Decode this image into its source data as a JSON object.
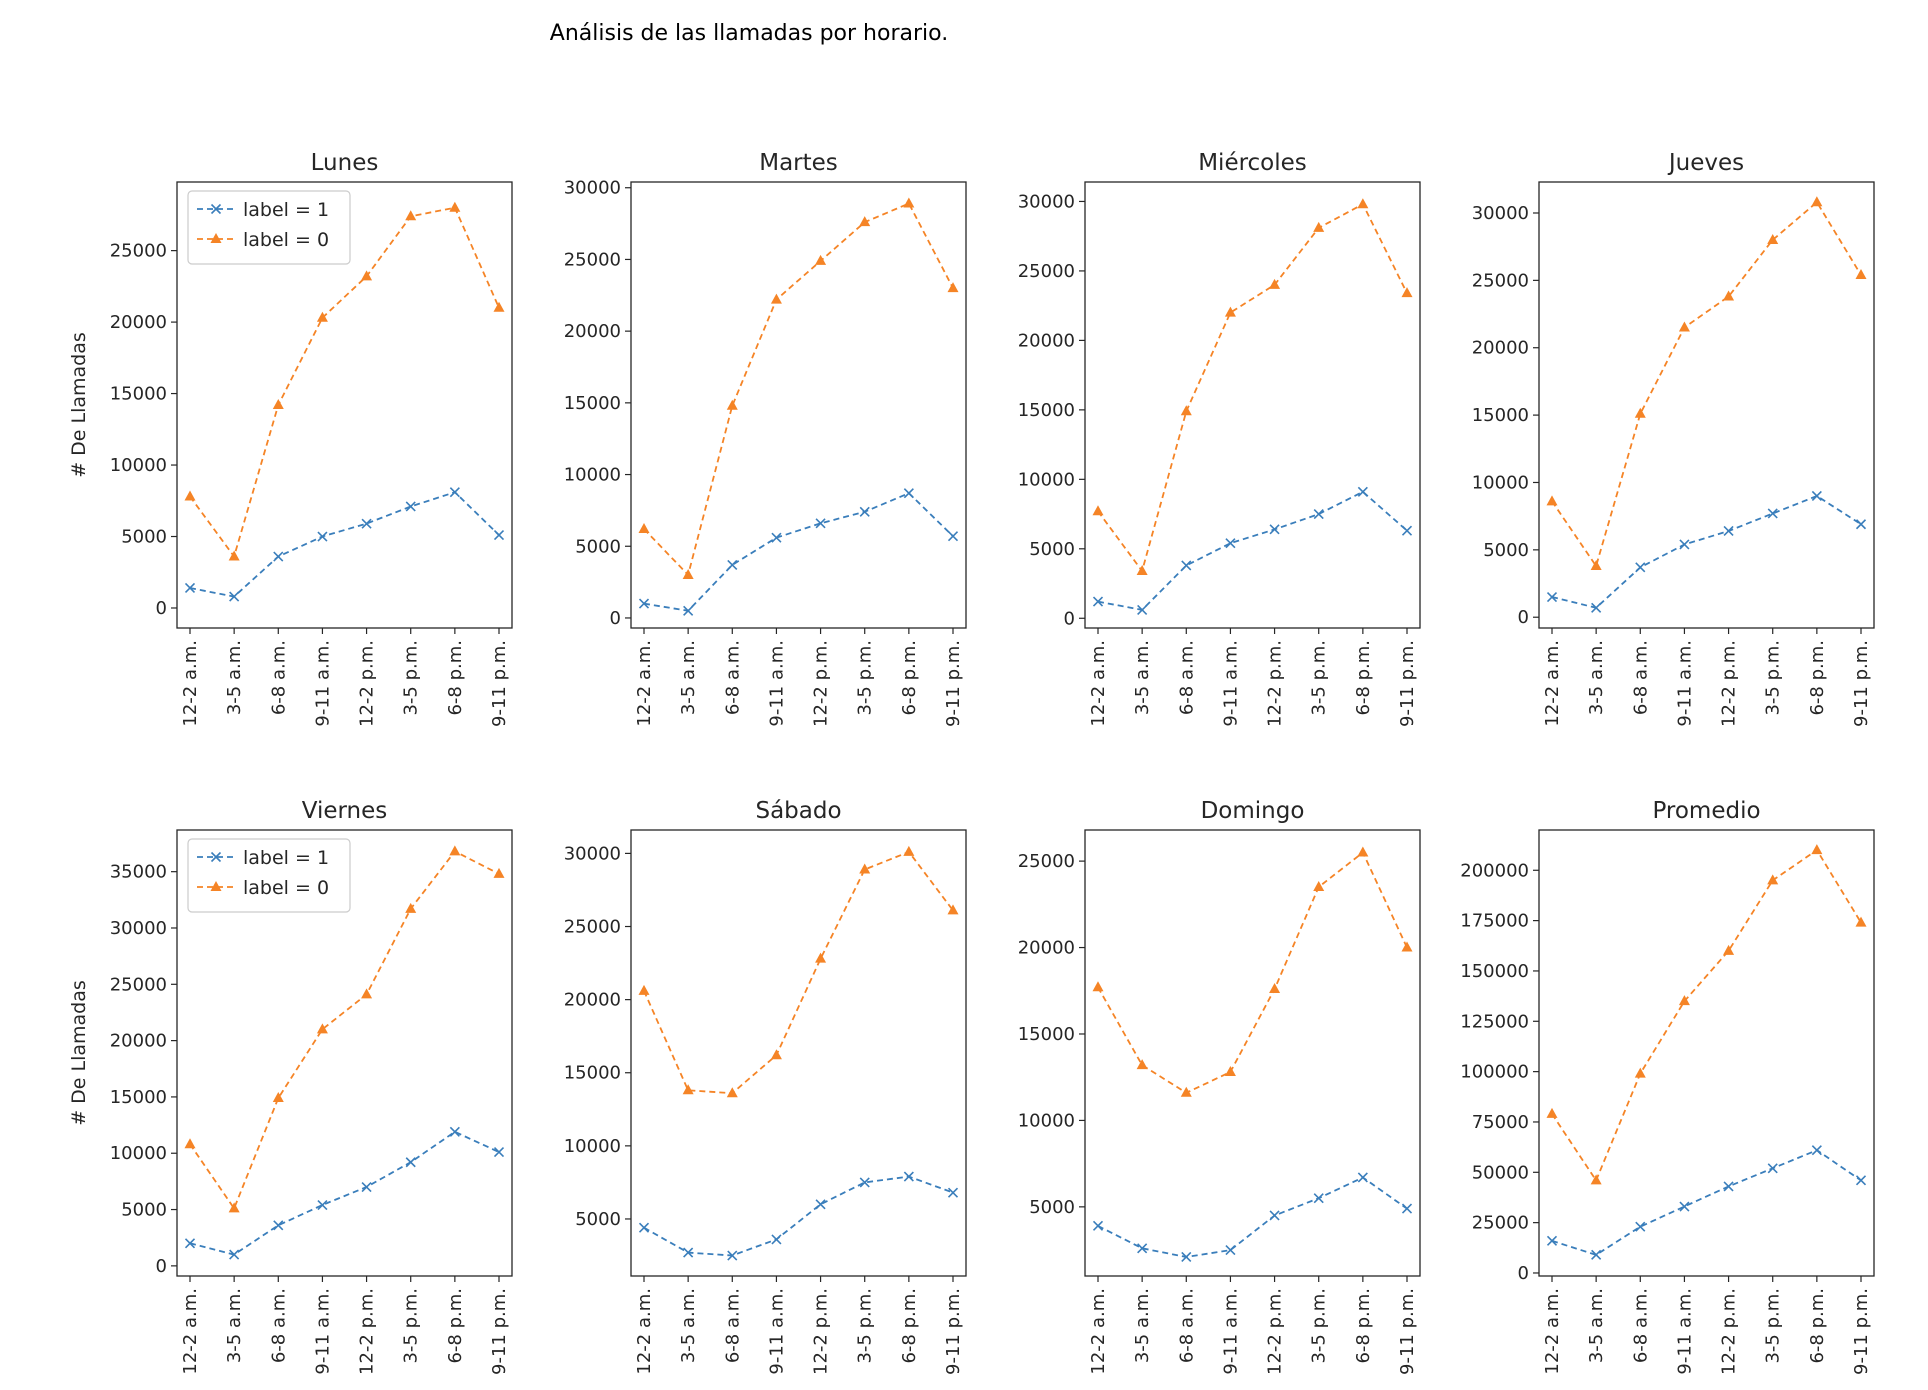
{
  "figure": {
    "suptitle": "Análisis de las llamadas por horario.",
    "ylabel": "# De Llamadas"
  },
  "colors": {
    "label1": "#3a7ebb",
    "label0": "#f58426",
    "axes": "#262626"
  },
  "chart_data": [
    {
      "type": "line",
      "title": "Lunes",
      "xlabel": "",
      "ylabel": "# De Llamadas",
      "categories": [
        "12-2 a.m.",
        "3-5 a.m.",
        "6-8 a.m.",
        "9-11 a.m.",
        "12-2 p.m.",
        "3-5 p.m.",
        "6-8 p.m.",
        "9-11 p.m."
      ],
      "ylim": [
        -1400,
        29800
      ],
      "yticks": [
        0,
        5000,
        10000,
        15000,
        20000,
        25000
      ],
      "legend": "upper-left",
      "grid": false,
      "series": [
        {
          "name": "label = 1",
          "marker": "x",
          "values": [
            1400,
            800,
            3600,
            5000,
            5900,
            7100,
            8100,
            5100
          ]
        },
        {
          "name": "label = 0",
          "marker": "triangle",
          "values": [
            7800,
            3600,
            14200,
            20300,
            23200,
            27400,
            28000,
            21000
          ]
        }
      ]
    },
    {
      "type": "line",
      "title": "Martes",
      "xlabel": "",
      "ylabel": "",
      "categories": [
        "12-2 a.m.",
        "3-5 a.m.",
        "6-8 a.m.",
        "9-11 a.m.",
        "12-2 p.m.",
        "3-5 p.m.",
        "6-8 p.m.",
        "9-11 p.m."
      ],
      "ylim": [
        -700,
        30400
      ],
      "yticks": [
        0,
        5000,
        10000,
        15000,
        20000,
        25000,
        30000
      ],
      "legend": "none",
      "grid": false,
      "series": [
        {
          "name": "label = 1",
          "marker": "x",
          "values": [
            1000,
            500,
            3700,
            5600,
            6600,
            7400,
            8700,
            5700
          ]
        },
        {
          "name": "label = 0",
          "marker": "triangle",
          "values": [
            6200,
            3000,
            14800,
            22200,
            24900,
            27600,
            28900,
            23000
          ]
        }
      ]
    },
    {
      "type": "line",
      "title": "Miércoles",
      "xlabel": "",
      "ylabel": "",
      "categories": [
        "12-2 a.m.",
        "3-5 a.m.",
        "6-8 a.m.",
        "9-11 a.m.",
        "12-2 p.m.",
        "3-5 p.m.",
        "6-8 p.m.",
        "9-11 p.m."
      ],
      "ylim": [
        -700,
        31400
      ],
      "yticks": [
        0,
        5000,
        10000,
        15000,
        20000,
        25000,
        30000
      ],
      "legend": "none",
      "grid": false,
      "series": [
        {
          "name": "label = 1",
          "marker": "x",
          "values": [
            1200,
            600,
            3800,
            5400,
            6400,
            7500,
            9100,
            6300
          ]
        },
        {
          "name": "label = 0",
          "marker": "triangle",
          "values": [
            7700,
            3400,
            14900,
            22000,
            24000,
            28100,
            29800,
            23400
          ]
        }
      ]
    },
    {
      "type": "line",
      "title": "Jueves",
      "xlabel": "",
      "ylabel": "",
      "categories": [
        "12-2 a.m.",
        "3-5 a.m.",
        "6-8 a.m.",
        "9-11 a.m.",
        "12-2 p.m.",
        "3-5 p.m.",
        "6-8 p.m.",
        "9-11 p.m."
      ],
      "ylim": [
        -800,
        32300
      ],
      "yticks": [
        0,
        5000,
        10000,
        15000,
        20000,
        25000,
        30000
      ],
      "legend": "none",
      "grid": false,
      "series": [
        {
          "name": "label = 1",
          "marker": "x",
          "values": [
            1500,
            700,
            3700,
            5400,
            6400,
            7700,
            9000,
            6900
          ]
        },
        {
          "name": "label = 0",
          "marker": "triangle",
          "values": [
            8600,
            3800,
            15100,
            21500,
            23800,
            28000,
            30800,
            25400
          ]
        }
      ]
    },
    {
      "type": "line",
      "title": "Viernes",
      "xlabel": "",
      "ylabel": "# De Llamadas",
      "categories": [
        "12-2 a.m.",
        "3-5 a.m.",
        "6-8 a.m.",
        "9-11 a.m.",
        "12-2 p.m.",
        "3-5 p.m.",
        "6-8 p.m.",
        "9-11 p.m."
      ],
      "ylim": [
        -900,
        38700
      ],
      "yticks": [
        0,
        5000,
        10000,
        15000,
        20000,
        25000,
        30000,
        35000
      ],
      "legend": "upper-left",
      "grid": false,
      "series": [
        {
          "name": "label = 1",
          "marker": "x",
          "values": [
            2000,
            1000,
            3600,
            5400,
            7000,
            9200,
            11900,
            10100
          ]
        },
        {
          "name": "label = 0",
          "marker": "triangle",
          "values": [
            10800,
            5100,
            14900,
            21000,
            24100,
            31700,
            36800,
            34800
          ]
        }
      ]
    },
    {
      "type": "line",
      "title": "Sábado",
      "xlabel": "",
      "ylabel": "",
      "categories": [
        "12-2 a.m.",
        "3-5 a.m.",
        "6-8 a.m.",
        "9-11 a.m.",
        "12-2 p.m.",
        "3-5 p.m.",
        "6-8 p.m.",
        "9-11 p.m."
      ],
      "ylim": [
        1100,
        31600
      ],
      "yticks": [
        5000,
        10000,
        15000,
        20000,
        25000,
        30000
      ],
      "legend": "none",
      "grid": false,
      "series": [
        {
          "name": "label = 1",
          "marker": "x",
          "values": [
            4400,
            2700,
            2500,
            3600,
            6000,
            7500,
            7900,
            6800
          ]
        },
        {
          "name": "label = 0",
          "marker": "triangle",
          "values": [
            20600,
            13800,
            13600,
            16200,
            22800,
            28900,
            30100,
            26100
          ]
        }
      ]
    },
    {
      "type": "line",
      "title": "Domingo",
      "xlabel": "",
      "ylabel": "",
      "categories": [
        "12-2 a.m.",
        "3-5 a.m.",
        "6-8 a.m.",
        "9-11 a.m.",
        "12-2 p.m.",
        "3-5 p.m.",
        "6-8 p.m.",
        "9-11 p.m."
      ],
      "ylim": [
        1000,
        26800
      ],
      "yticks": [
        5000,
        10000,
        15000,
        20000,
        25000
      ],
      "legend": "none",
      "grid": false,
      "series": [
        {
          "name": "label = 1",
          "marker": "x",
          "values": [
            3900,
            2600,
            2100,
            2500,
            4500,
            5500,
            6700,
            4900
          ]
        },
        {
          "name": "label = 0",
          "marker": "triangle",
          "values": [
            17700,
            13200,
            11600,
            12800,
            17600,
            23500,
            25500,
            20000
          ]
        }
      ]
    },
    {
      "type": "line",
      "title": "Promedio",
      "xlabel": "",
      "ylabel": "",
      "categories": [
        "12-2 a.m.",
        "3-5 a.m.",
        "6-8 a.m.",
        "9-11 a.m.",
        "12-2 p.m.",
        "3-5 p.m.",
        "6-8 p.m.",
        "9-11 p.m."
      ],
      "ylim": [
        -1500,
        220000
      ],
      "yticks": [
        0,
        25000,
        50000,
        75000,
        100000,
        125000,
        150000,
        175000,
        200000
      ],
      "legend": "none",
      "grid": false,
      "series": [
        {
          "name": "label = 1",
          "marker": "x",
          "values": [
            16000,
            9000,
            23000,
            33000,
            43000,
            52000,
            61000,
            46000
          ]
        },
        {
          "name": "label = 0",
          "marker": "triangle",
          "values": [
            79000,
            46000,
            99000,
            135000,
            160000,
            195000,
            210000,
            174000
          ]
        }
      ]
    }
  ]
}
